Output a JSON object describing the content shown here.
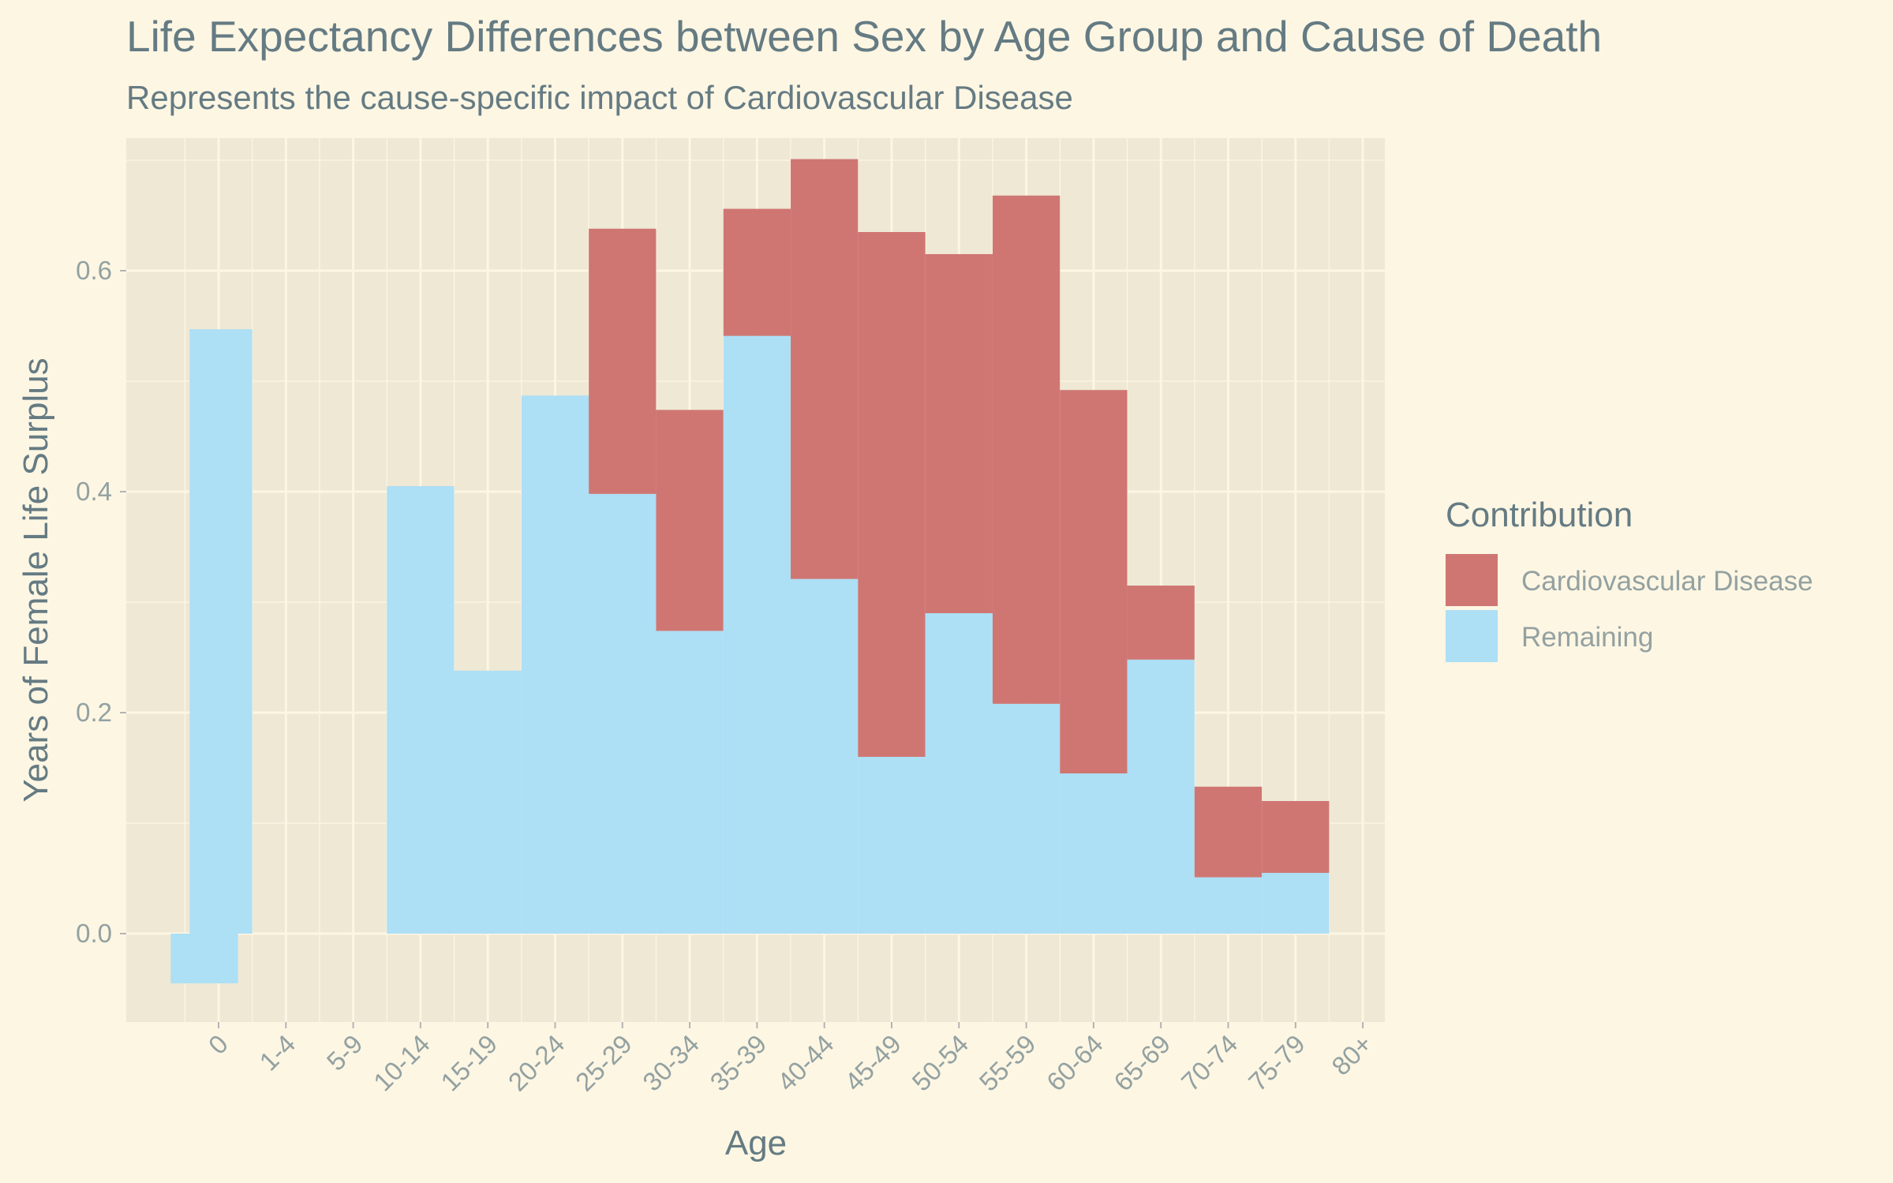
{
  "colors": {
    "page_background": "#fdf6e3",
    "panel_background": "#eee8d5",
    "grid": "#fdf6e3",
    "cardiovascular": "#cf7673",
    "remaining": "#addff5"
  },
  "chart_data": {
    "type": "bar",
    "title": "Life Expectancy Differences between Sex by Age Group and Cause of Death",
    "subtitle": "Represents the cause-specific impact of Cardiovascular Disease",
    "xlabel": "Age",
    "ylabel": "Years of Female Life Surplus",
    "categories": [
      "0",
      "1-4",
      "5-9",
      "10-14",
      "15-19",
      "20-24",
      "25-29",
      "30-34",
      "35-39",
      "40-44",
      "45-49",
      "50-54",
      "55-59",
      "60-64",
      "65-69",
      "70-74",
      "75-79",
      "80+"
    ],
    "y_ticks": [
      "0.0",
      "0.2",
      "0.4",
      "0.6"
    ],
    "ylim": [
      -0.08,
      0.72
    ],
    "grid": true,
    "stacked": true,
    "legend": {
      "title": "Contribution",
      "position": "right",
      "entries": [
        "Cardiovascular Disease",
        "Remaining"
      ]
    },
    "series": [
      {
        "name": "Cardiovascular Disease",
        "values": [
          0.0,
          0.0,
          0.0,
          0.0,
          0.0,
          0.0,
          0.24,
          0.2,
          0.115,
          0.38,
          0.475,
          0.325,
          0.46,
          0.347,
          0.067,
          0.082,
          0.065,
          0.0
        ]
      },
      {
        "name": "Remaining",
        "values": [
          0.503,
          0.0,
          0.0,
          0.405,
          0.238,
          0.487,
          0.398,
          0.274,
          0.541,
          0.321,
          0.16,
          0.29,
          0.208,
          0.145,
          0.248,
          0.051,
          0.055,
          0.0
        ]
      }
    ],
    "notes_visible_spans": {
      "remaining_age0_range": [
        -0.045,
        0.547
      ]
    }
  }
}
